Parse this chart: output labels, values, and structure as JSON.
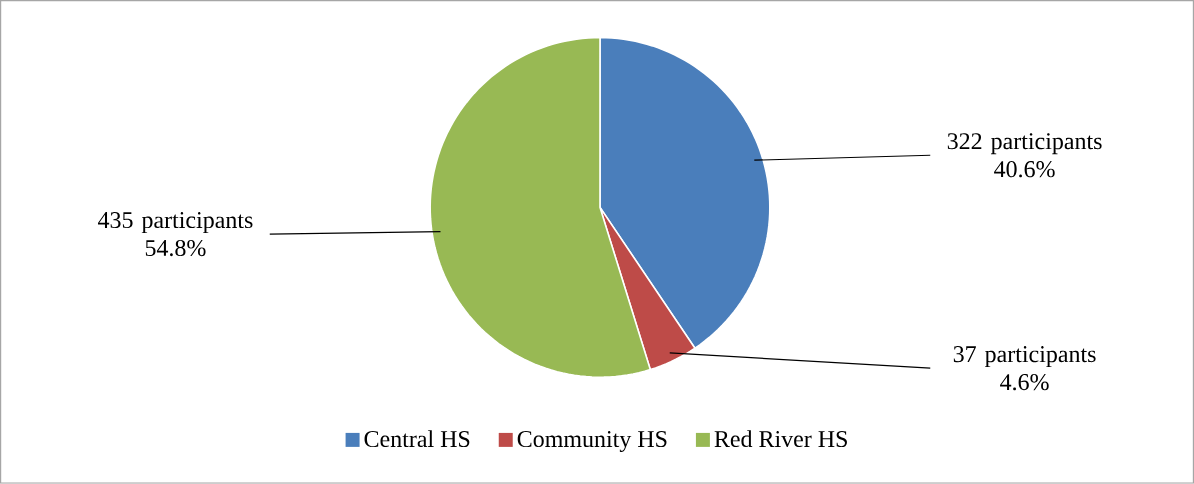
{
  "chart_data": {
    "type": "pie",
    "categories": [
      "Central HS",
      "Community HS",
      "Red River HS"
    ],
    "values": [
      322,
      37,
      435
    ],
    "colors": [
      "#4a7ebb",
      "#be4b48",
      "#98b954"
    ],
    "value_labels": [
      "322 participants 40.6%",
      "37 participants 4.6%",
      "435 participants 54.8%"
    ],
    "legend": "bottom"
  }
}
